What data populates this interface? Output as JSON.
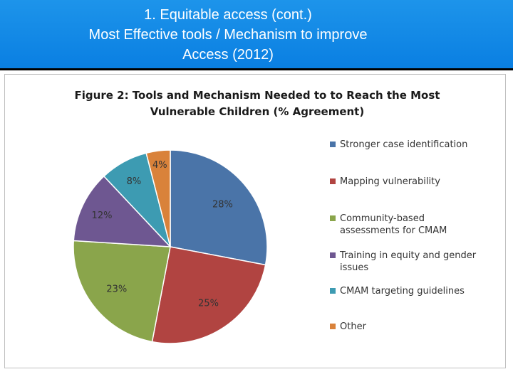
{
  "slide": {
    "title_lines": [
      "1. Equitable access (cont.)",
      "Most Effective tools / Mechanism to improve",
      "Access (2012)"
    ]
  },
  "chart_data": {
    "type": "pie",
    "title_lines": [
      "Figure 2: Tools and Mechanism Needed to to Reach the Most",
      "Vulnerable Children (% Agreement)"
    ],
    "unit": "%",
    "legend_position": "right",
    "slices": [
      {
        "label_lines": [
          "Stronger case identification"
        ],
        "value": 28,
        "color": "#4a74a8"
      },
      {
        "label_lines": [
          "Mapping vulnerability"
        ],
        "value": 25,
        "color": "#b14441"
      },
      {
        "label_lines": [
          "Community-based",
          "assessments for CMAM"
        ],
        "value": 23,
        "color": "#8aa54b"
      },
      {
        "label_lines": [
          "Training in equity and gender",
          "issues"
        ],
        "value": 12,
        "color": "#6e5791"
      },
      {
        "label_lines": [
          "CMAM targeting guidelines"
        ],
        "value": 8,
        "color": "#3d9bb2"
      },
      {
        "label_lines": [
          "Other"
        ],
        "value": 4,
        "color": "#d9823a"
      }
    ]
  }
}
